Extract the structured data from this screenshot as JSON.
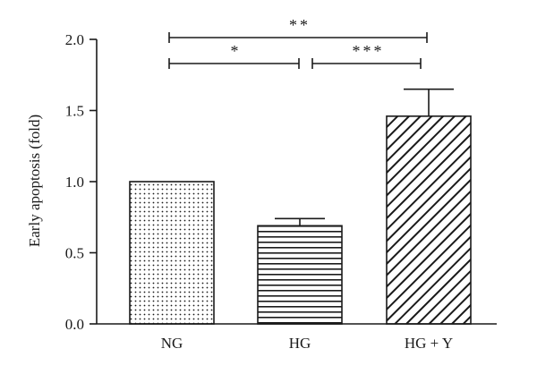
{
  "chart_data": {
    "type": "bar",
    "title": "",
    "xlabel": "",
    "ylabel": "Early apoptosis (fold)",
    "categories": [
      "NG",
      "HG",
      "HG + Y"
    ],
    "values": [
      1.0,
      0.69,
      1.46
    ],
    "errors": [
      0.0,
      0.05,
      0.19
    ],
    "patterns": [
      "dots",
      "horizontal-lines",
      "diagonal-lines"
    ],
    "ylim": [
      0,
      2.0
    ],
    "yticks": [
      "0.0",
      "0.5",
      "1.0",
      "1.5",
      "2.0"
    ],
    "grid": false,
    "legend": "none",
    "significance": [
      {
        "from": "NG",
        "to": "HG + Y",
        "label": "**"
      },
      {
        "from": "NG",
        "to": "HG",
        "label": "*"
      },
      {
        "from": "HG",
        "to": "HG + Y",
        "label": "***"
      }
    ],
    "colors": {
      "ink": "#1a1a1a",
      "background": "#ffffff"
    }
  }
}
